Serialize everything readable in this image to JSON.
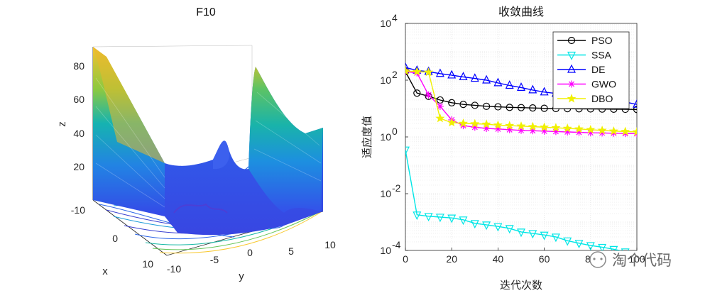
{
  "chart_data": [
    {
      "type": "surface",
      "title": "F10",
      "xlabel": "x",
      "ylabel": "y",
      "zlabel": "z",
      "x_ticks": [
        "-10",
        "0",
        "10"
      ],
      "y_ticks": [
        "-10",
        "-5",
        "0",
        "5",
        "10"
      ],
      "z_ticks": [
        "20",
        "40",
        "60",
        "80"
      ],
      "xlim": [
        -10,
        10
      ],
      "ylim": [
        -10,
        10
      ],
      "zlim": [
        0,
        90
      ],
      "colormap": [
        "#3e26a8",
        "#2f5ff0",
        "#1a9ad9",
        "#16b8a4",
        "#68c65a",
        "#c6bd34",
        "#f8c930",
        "#f7e71f"
      ],
      "contours_at_base": true
    },
    {
      "type": "line",
      "title": "收敛曲线",
      "xlabel": "迭代次数",
      "ylabel": "适应度值",
      "xlim": [
        0,
        100
      ],
      "ylim": [
        0.0001,
        10000
      ],
      "yscale": "log",
      "grid": true,
      "legend_position": "top-right",
      "x_ticks": [
        "0",
        "20",
        "40",
        "60",
        "80",
        "100"
      ],
      "y_ticks": [
        {
          "base": "10",
          "exp": "-4",
          "value": 0.0001
        },
        {
          "base": "10",
          "exp": "-2",
          "value": 0.01
        },
        {
          "base": "10",
          "exp": "0",
          "value": 1
        },
        {
          "base": "10",
          "exp": "2",
          "value": 100
        },
        {
          "base": "10",
          "exp": "4",
          "value": 10000
        }
      ],
      "x": [
        0,
        5,
        10,
        15,
        20,
        25,
        30,
        35,
        40,
        45,
        50,
        55,
        60,
        65,
        70,
        75,
        80,
        85,
        90,
        95,
        100
      ],
      "series": [
        {
          "name": "PSO",
          "color": "#000000",
          "marker": "circle",
          "values": [
            200,
            35,
            27,
            20,
            16,
            14,
            13,
            12,
            11.5,
            11,
            10.8,
            10.5,
            10.2,
            10,
            9.9,
            9.8,
            9.7,
            9.6,
            9.5,
            9.4,
            9.3
          ]
        },
        {
          "name": "SSA",
          "color": "#00e6e6",
          "marker": "triangle-down",
          "values": [
            0.35,
            0.0018,
            0.0016,
            0.0015,
            0.0014,
            0.0012,
            0.0009,
            0.0008,
            0.0007,
            0.0006,
            0.00045,
            0.0004,
            0.00035,
            0.0003,
            0.00022,
            0.00018,
            0.00015,
            0.00013,
            0.00011,
            9e-05,
            7e-05
          ]
        },
        {
          "name": "DE",
          "color": "#0000ff",
          "marker": "triangle-up",
          "values": [
            280,
            220,
            200,
            170,
            150,
            130,
            115,
            100,
            80,
            65,
            55,
            45,
            38,
            34,
            30,
            28,
            25,
            22,
            20,
            17,
            14
          ]
        },
        {
          "name": "GWO",
          "color": "#ff00ff",
          "marker": "asterisk",
          "values": [
            200,
            180,
            30,
            12,
            4,
            2.5,
            2.2,
            2.0,
            1.9,
            1.8,
            1.7,
            1.65,
            1.6,
            1.55,
            1.5,
            1.45,
            1.4,
            1.38,
            1.35,
            1.32,
            1.3
          ]
        },
        {
          "name": "DBO",
          "color": "#f0f000",
          "marker": "star",
          "values": [
            210,
            200,
            190,
            4.5,
            3.2,
            3.0,
            2.9,
            2.8,
            2.6,
            2.5,
            2.4,
            2.3,
            2.2,
            2.1,
            2.0,
            1.9,
            1.8,
            1.7,
            1.6,
            1.55,
            1.5
          ]
        }
      ]
    }
  ],
  "watermark": "淘个代码"
}
